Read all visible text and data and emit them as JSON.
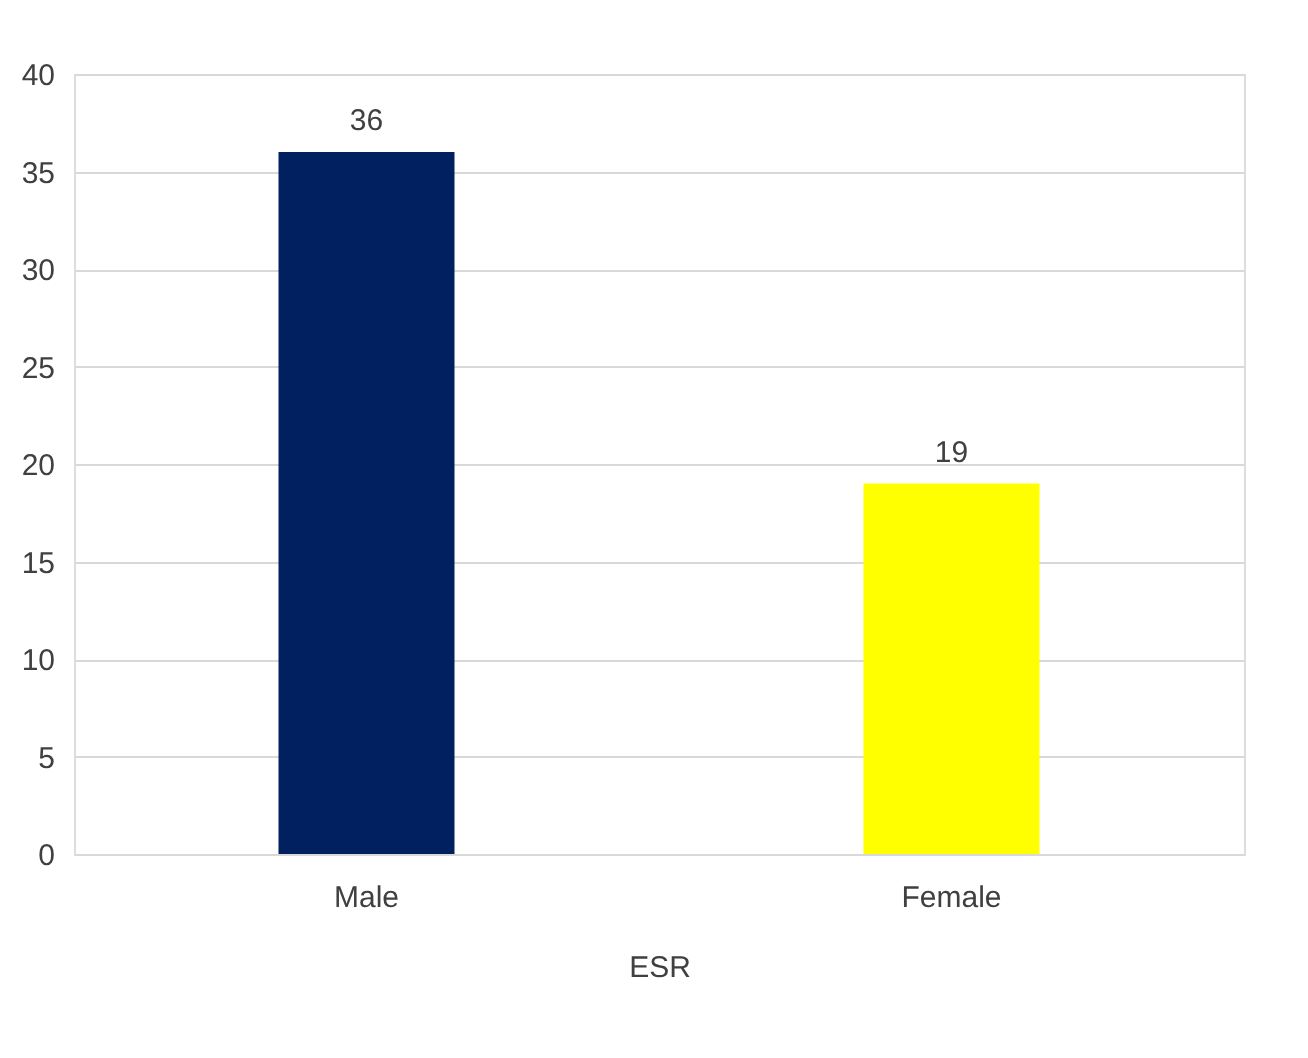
{
  "chart_data": {
    "type": "bar",
    "xlabel": "ESR",
    "categories": [
      "Male",
      "Female"
    ],
    "values": [
      36,
      19
    ],
    "colors": [
      "#002060",
      "#ffff00"
    ],
    "ylim": [
      0,
      40
    ],
    "yticks": [
      0,
      5,
      10,
      15,
      20,
      25,
      30,
      35,
      40
    ],
    "grid": "y",
    "data_labels": true
  }
}
